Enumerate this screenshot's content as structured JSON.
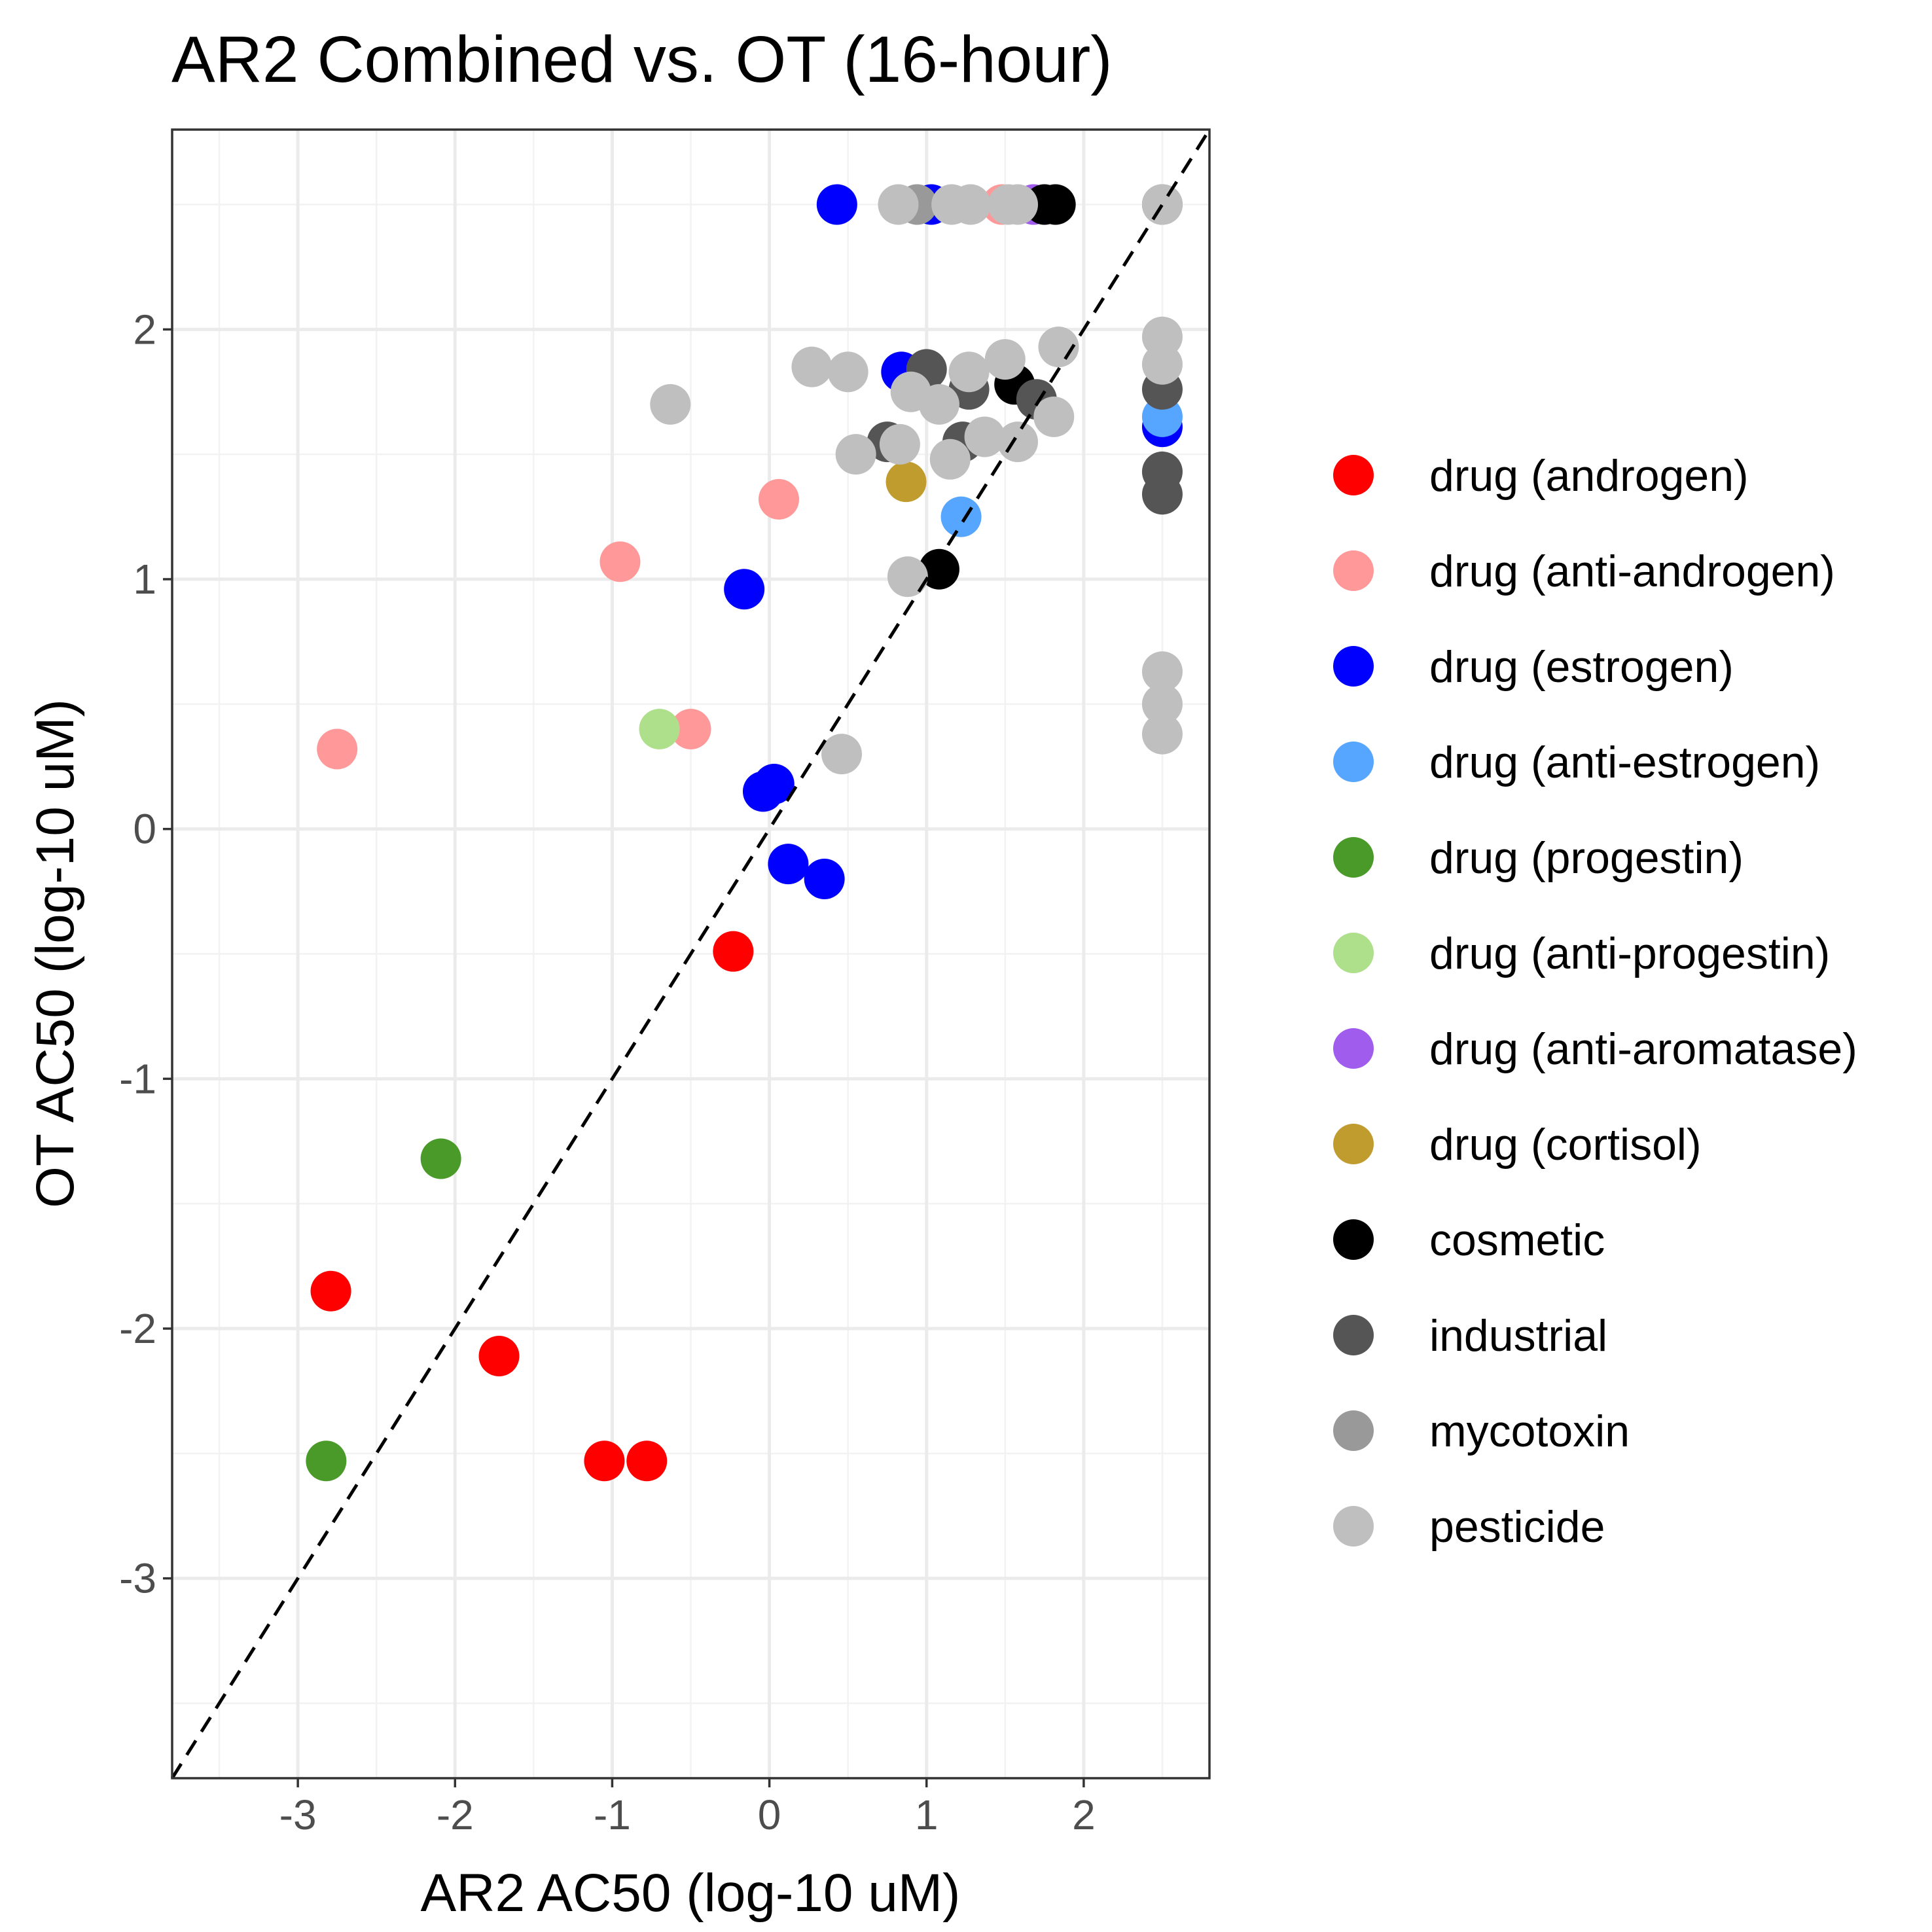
{
  "chart_data": {
    "type": "scatter",
    "title": "AR2 Combined vs. OT (16-hour)",
    "xlabel": "AR2 AC50 (log-10 uM)",
    "ylabel": "OT AC50 (log-10 uM)",
    "xlim": [
      -3.8,
      2.8
    ],
    "ylim": [
      -3.8,
      2.8
    ],
    "xticks": [
      -3,
      -2,
      -1,
      0,
      1,
      2
    ],
    "yticks": [
      -3,
      -2,
      -1,
      0,
      1,
      2
    ],
    "xtick_labels": [
      "-3",
      "-2",
      "-1",
      "0",
      "1",
      "2"
    ],
    "ytick_labels": [
      "-3",
      "-2",
      "-1",
      "0",
      "1",
      "2"
    ],
    "grid": true,
    "reference_line": "y = x (dashed)",
    "legend_position": "right",
    "series": [
      {
        "name": "drug (androgen)",
        "color": "#ff0000",
        "x": [
          -2.79,
          -1.72,
          -1.05,
          -0.78,
          -0.23
        ],
        "y": [
          -1.85,
          -2.11,
          -2.53,
          -2.53,
          -0.49
        ]
      },
      {
        "name": "drug (anti-androgen)",
        "color": "#ff9999",
        "x": [
          -2.75,
          -0.95,
          -0.5,
          0.06,
          1.48
        ],
        "y": [
          0.32,
          1.07,
          0.4,
          1.32,
          2.5
        ]
      },
      {
        "name": "drug (estrogen)",
        "color": "#0000ff",
        "x": [
          0.43,
          1.03,
          0.84,
          -0.16,
          -0.04,
          0.03,
          0.12,
          0.35,
          2.5
        ],
        "y": [
          2.5,
          2.5,
          1.83,
          0.96,
          0.15,
          0.18,
          -0.14,
          -0.2,
          1.61
        ]
      },
      {
        "name": "drug (anti-estrogen)",
        "color": "#56a5ff",
        "x": [
          1.22,
          2.5
        ],
        "y": [
          1.25,
          1.65
        ]
      },
      {
        "name": "drug (progestin)",
        "color": "#4a9a2a",
        "x": [
          -2.09,
          -2.82
        ],
        "y": [
          -1.32,
          -2.53
        ]
      },
      {
        "name": "drug (anti-progestin)",
        "color": "#aee08c",
        "x": [
          -0.7
        ],
        "y": [
          0.4
        ]
      },
      {
        "name": "drug (anti-aromatase)",
        "color": "#a05cec",
        "x": [
          1.68
        ],
        "y": [
          2.5
        ]
      },
      {
        "name": "drug (cortisol)",
        "color": "#c09b2e",
        "x": [
          0.87
        ],
        "y": [
          1.39
        ]
      },
      {
        "name": "cosmetic",
        "color": "#000000",
        "x": [
          1.08,
          1.56,
          1.75,
          1.82
        ],
        "y": [
          1.04,
          1.78,
          2.5,
          2.5
        ]
      },
      {
        "name": "industrial",
        "color": "#555555",
        "x": [
          1.0,
          1.27,
          1.23,
          0.75,
          1.7,
          2.5,
          2.5,
          2.5,
          2.5
        ],
        "y": [
          1.84,
          1.76,
          1.55,
          1.55,
          1.72,
          1.76,
          1.43,
          1.34,
          2.5
        ]
      },
      {
        "name": "mycotoxin",
        "color": "#999999",
        "x": [
          0.94
        ],
        "y": [
          2.5
        ]
      },
      {
        "name": "pesticide",
        "color": "#bfbfbf",
        "x": [
          0.82,
          1.16,
          1.28,
          1.52,
          1.58,
          2.5,
          -0.63,
          0.27,
          0.5,
          0.9,
          1.08,
          1.27,
          1.5,
          1.84,
          0.55,
          0.83,
          1.15,
          1.37,
          1.58,
          1.81,
          0.88,
          0.46,
          2.5,
          2.5,
          2.5,
          2.5,
          2.5
        ],
        "y": [
          2.5,
          2.5,
          2.5,
          2.5,
          2.5,
          2.5,
          1.7,
          1.85,
          1.83,
          1.75,
          1.7,
          1.83,
          1.88,
          1.93,
          1.5,
          1.54,
          1.48,
          1.57,
          1.55,
          1.65,
          1.01,
          0.3,
          1.97,
          1.86,
          0.63,
          0.5,
          0.38
        ]
      }
    ]
  }
}
